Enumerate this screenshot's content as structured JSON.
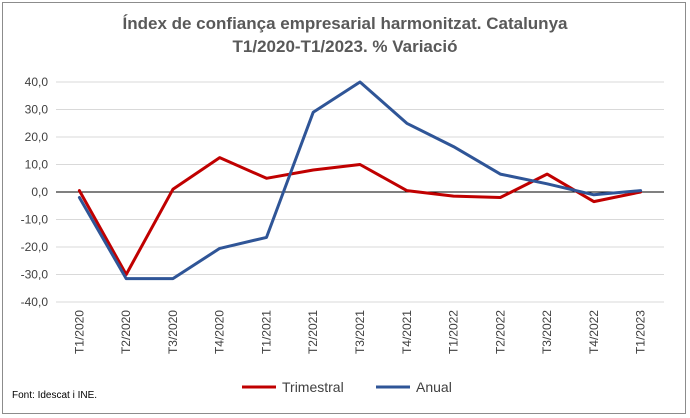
{
  "chart_data": {
    "type": "line",
    "title": "Índex de confiança empresarial harmonitzat. Catalunya",
    "subtitle": "T1/2020-T1/2023. % Variació",
    "xlabel": "",
    "ylabel": "",
    "ylim": [
      -40,
      40
    ],
    "yticks": [
      40,
      30,
      20,
      10,
      0,
      -10,
      -20,
      -30,
      -40
    ],
    "ytick_labels": [
      "40,0",
      "30,0",
      "20,0",
      "10,0",
      "0,0",
      "-10,0",
      "-20,0",
      "-30,0",
      "-40,0"
    ],
    "grid": true,
    "legend_position": "bottom",
    "categories": [
      "T1/2020",
      "T2/2020",
      "T3/2020",
      "T4/2020",
      "T1/2021",
      "T2/2021",
      "T3/2021",
      "T4/2021",
      "T1/2022",
      "T2/2022",
      "T3/2022",
      "T4/2022",
      "T1/2023"
    ],
    "series": [
      {
        "name": "Trimestral",
        "color": "#c00000",
        "values": [
          0.5,
          -30.0,
          1.0,
          12.5,
          5.0,
          8.0,
          10.0,
          0.5,
          -1.5,
          -2.0,
          6.5,
          -3.5,
          0.0
        ]
      },
      {
        "name": "Anual",
        "color": "#2f5597",
        "values": [
          -2.0,
          -31.5,
          -31.5,
          -20.5,
          -16.5,
          29.0,
          40.0,
          25.0,
          16.5,
          6.5,
          3.0,
          -1.0,
          0.5
        ]
      }
    ],
    "source": "Font: Idescat i INE."
  }
}
